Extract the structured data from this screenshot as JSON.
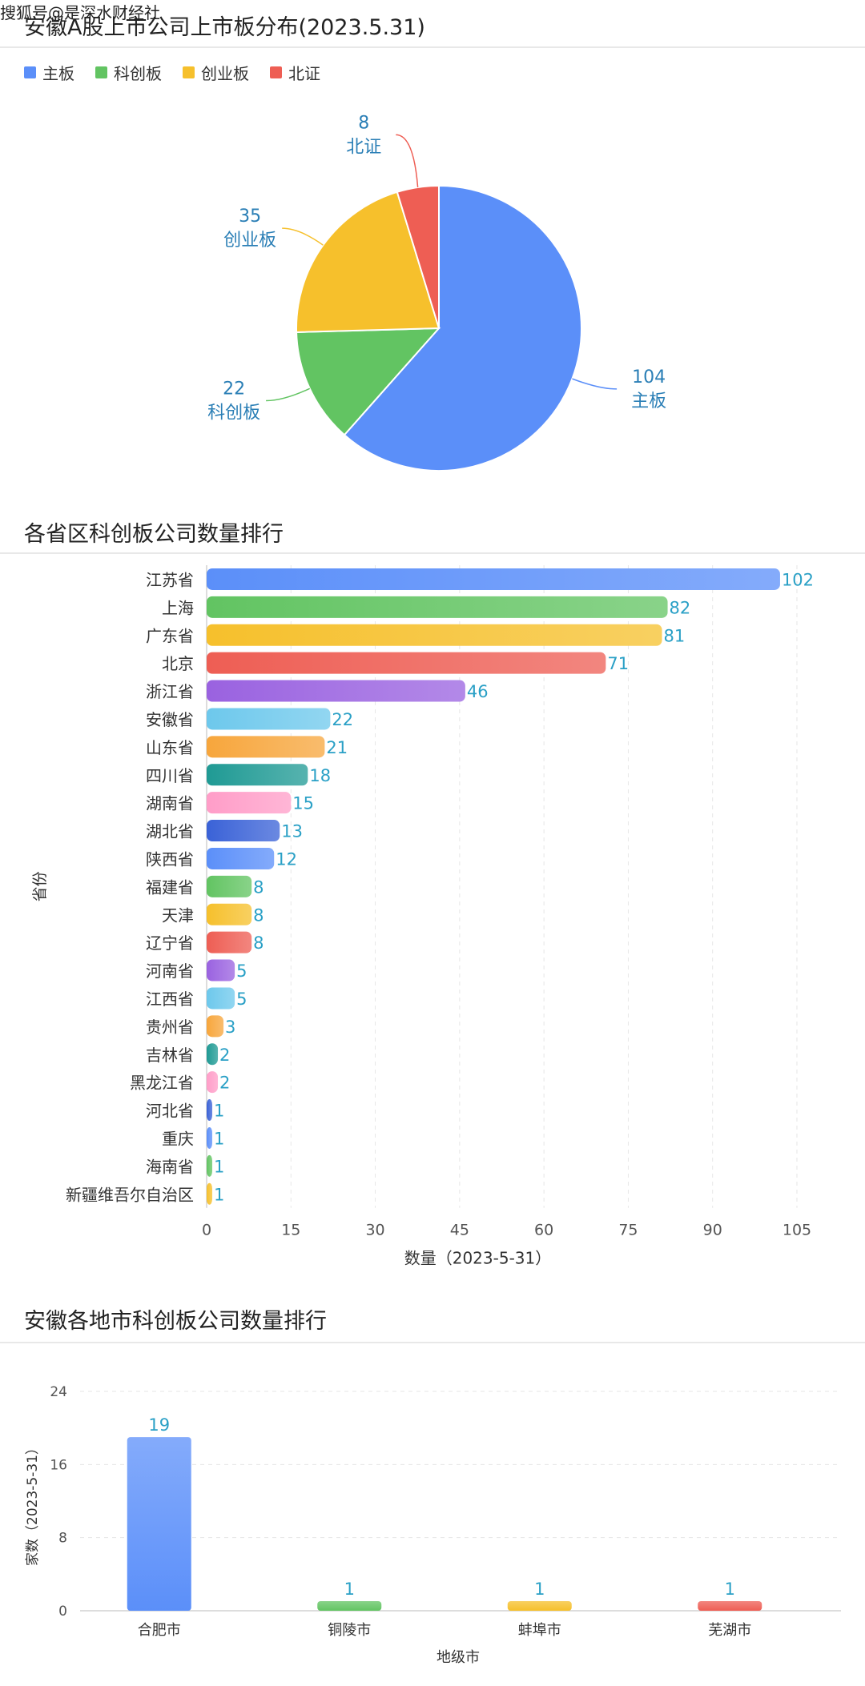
{
  "watermark": "搜狐号@是深水财经社",
  "pie_section": {
    "title": "安徽A股上市公司上市板分布(2023.5.31)",
    "legend": [
      {
        "label": "主板",
        "color": "#5b8ff9"
      },
      {
        "label": "科创板",
        "color": "#62c462"
      },
      {
        "label": "创业板",
        "color": "#f6c02c"
      },
      {
        "label": "北证",
        "color": "#ee5e54"
      }
    ]
  },
  "bar_section": {
    "title": "各省区科创板公司数量排行"
  },
  "col_section": {
    "title": "安徽各地市科创板公司数量排行"
  },
  "chart_data": [
    {
      "type": "pie",
      "title": "安徽A股上市公司上市板分布(2023.5.31)",
      "slices": [
        {
          "label": "主板",
          "value": 104,
          "color": "#5b8ff9"
        },
        {
          "label": "科创板",
          "value": 22,
          "color": "#62c462"
        },
        {
          "label": "创业板",
          "value": 35,
          "color": "#f6c02c"
        },
        {
          "label": "北证",
          "value": 8,
          "color": "#ee5e54"
        }
      ],
      "legend_position": "top-left"
    },
    {
      "type": "bar",
      "orientation": "horizontal",
      "title": "各省区科创板公司数量排行",
      "xlabel": "数量（2023-5-31）",
      "ylabel": "省份",
      "xlim": [
        0,
        105
      ],
      "xticks": [
        0,
        15,
        30,
        45,
        60,
        75,
        90,
        105
      ],
      "grid": true,
      "categories": [
        "江苏省",
        "上海",
        "广东省",
        "北京",
        "浙江省",
        "安徽省",
        "山东省",
        "四川省",
        "湖南省",
        "湖北省",
        "陕西省",
        "福建省",
        "天津",
        "辽宁省",
        "河南省",
        "江西省",
        "贵州省",
        "吉林省",
        "黑龙江省",
        "河北省",
        "重庆",
        "海南省",
        "新疆维吾尔自治区"
      ],
      "values": [
        102,
        82,
        81,
        71,
        46,
        22,
        21,
        18,
        15,
        13,
        12,
        8,
        8,
        8,
        5,
        5,
        3,
        2,
        2,
        1,
        1,
        1,
        1
      ],
      "colors": [
        "#5b8ff9",
        "#62c462",
        "#f6c02c",
        "#ee5e54",
        "#9a62e0",
        "#6dc8ec",
        "#f7a63c",
        "#1f9a94",
        "#ff9dc8",
        "#3a62d7",
        "#5b8ff9",
        "#62c462",
        "#f6c02c",
        "#ee5e54",
        "#9a62e0",
        "#6dc8ec",
        "#f7a63c",
        "#1f9a94",
        "#ff9dc8",
        "#3a62d7",
        "#5b8ff9",
        "#62c462",
        "#f6c02c"
      ]
    },
    {
      "type": "bar",
      "title": "安徽各地市科创板公司数量排行",
      "xlabel": "地级市",
      "ylabel": "家数（2023-5-31）",
      "ylim": [
        0,
        24
      ],
      "yticks": [
        0,
        8,
        16,
        24
      ],
      "grid": true,
      "categories": [
        "合肥市",
        "铜陵市",
        "蚌埠市",
        "芜湖市"
      ],
      "values": [
        19,
        1,
        1,
        1
      ],
      "colors": [
        "#5b8ff9",
        "#62c462",
        "#f6c02c",
        "#ee5e54"
      ]
    }
  ]
}
